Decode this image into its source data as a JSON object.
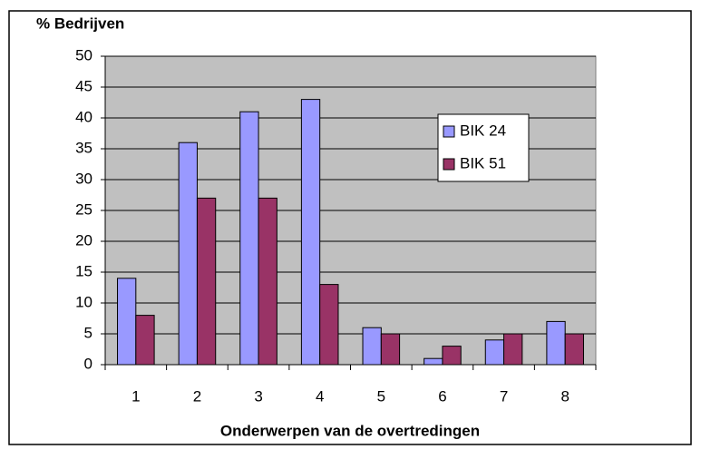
{
  "chart_data": {
    "type": "bar",
    "title": "% Bedrijven",
    "x_label": "Onderwerpen van de overtredingen",
    "categories": [
      "1",
      "2",
      "3",
      "4",
      "5",
      "6",
      "7",
      "8"
    ],
    "series": [
      {
        "name": "BIK 24",
        "color": "#9999ff",
        "values": [
          14,
          36,
          41,
          43,
          6,
          1,
          4,
          7
        ]
      },
      {
        "name": "BIK 51",
        "color": "#993366",
        "values": [
          8,
          27,
          27,
          13,
          5,
          3,
          5,
          5
        ]
      }
    ],
    "ylim": [
      0,
      50
    ],
    "yticks": [
      0,
      5,
      10,
      15,
      20,
      25,
      30,
      35,
      40,
      45,
      50
    ],
    "grid": true,
    "legend": "right"
  }
}
